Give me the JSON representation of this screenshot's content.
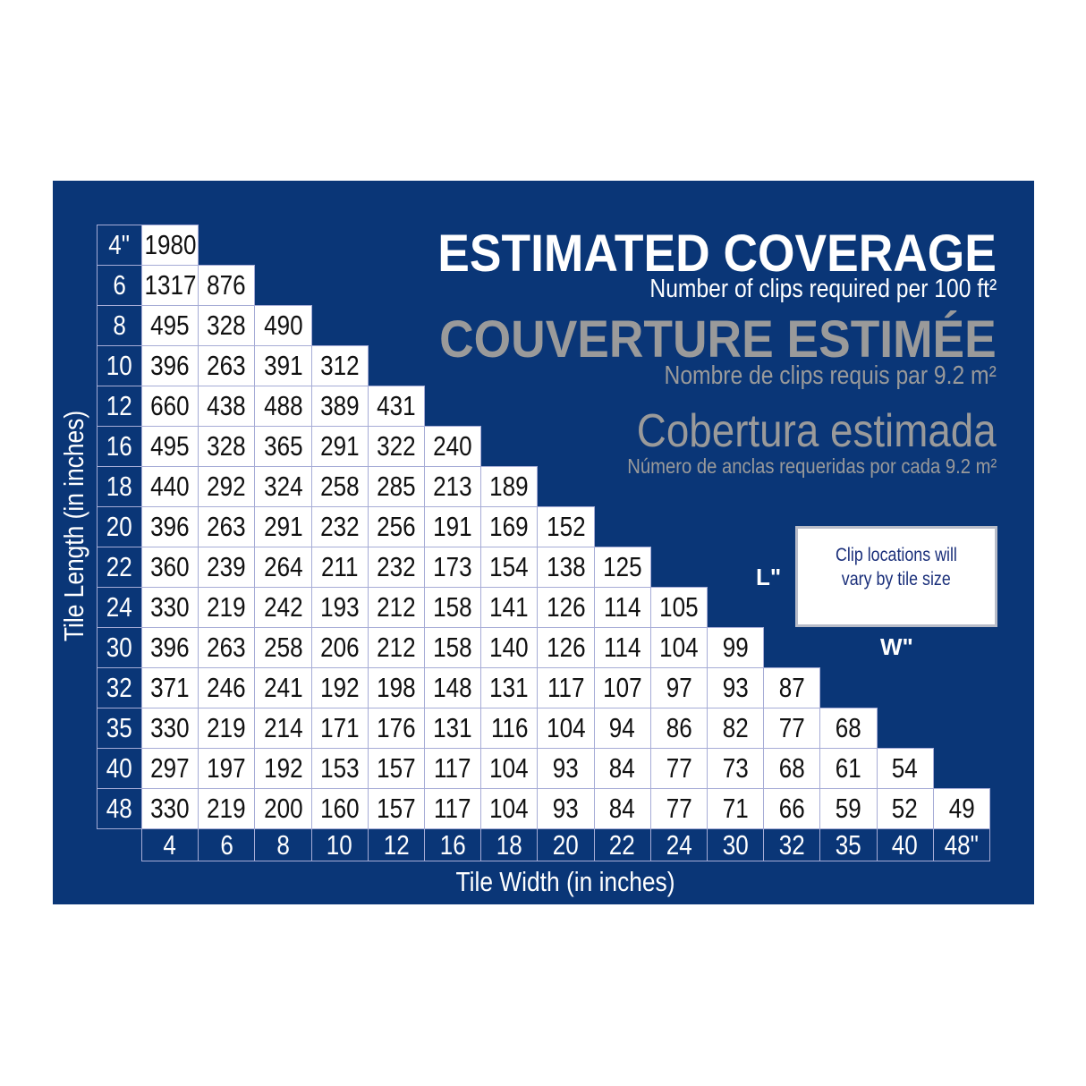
{
  "title_en": "ESTIMATED COVERAGE",
  "subtitle_en": "Number of clips required per 100 ft²",
  "title_fr": "COUVERTURE ESTIMÉE",
  "subtitle_fr": "Nombre de clips requis par 9.2 m²",
  "title_es": "Cobertura estimada",
  "subtitle_es": "Número  de anclas requeridas por cada 9.2 m²",
  "legend": {
    "text_line1": "Clip locations will",
    "text_line2": "vary by tile size",
    "length_label": "L\"",
    "width_label": "W\""
  },
  "ylabel": "Tile Length (in inches)",
  "xlabel": "Tile Width (in inches)",
  "colors": {
    "background": "#0a3677",
    "accent_gray": "#9a9a9a",
    "legend_text": "#1a2f7a"
  },
  "row_labels": [
    "4\"",
    "6",
    "8",
    "10",
    "12",
    "16",
    "18",
    "20",
    "22",
    "24",
    "30",
    "32",
    "35",
    "40",
    "48"
  ],
  "col_labels": [
    "4",
    "6",
    "8",
    "10",
    "12",
    "16",
    "18",
    "20",
    "22",
    "24",
    "30",
    "32",
    "35",
    "40",
    "48\""
  ],
  "table": [
    [
      "1980"
    ],
    [
      "1317",
      "876"
    ],
    [
      "495",
      "328",
      "490"
    ],
    [
      "396",
      "263",
      "391",
      "312"
    ],
    [
      "660",
      "438",
      "488",
      "389",
      "431"
    ],
    [
      "495",
      "328",
      "365",
      "291",
      "322",
      "240"
    ],
    [
      "440",
      "292",
      "324",
      "258",
      "285",
      "213",
      "189"
    ],
    [
      "396",
      "263",
      "291",
      "232",
      "256",
      "191",
      "169",
      "152"
    ],
    [
      "360",
      "239",
      "264",
      "211",
      "232",
      "173",
      "154",
      "138",
      "125"
    ],
    [
      "330",
      "219",
      "242",
      "193",
      "212",
      "158",
      "141",
      "126",
      "114",
      "105"
    ],
    [
      "396",
      "263",
      "258",
      "206",
      "212",
      "158",
      "140",
      "126",
      "114",
      "104",
      "99"
    ],
    [
      "371",
      "246",
      "241",
      "192",
      "198",
      "148",
      "131",
      "117",
      "107",
      "97",
      "93",
      "87"
    ],
    [
      "330",
      "219",
      "214",
      "171",
      "176",
      "131",
      "116",
      "104",
      "94",
      "86",
      "82",
      "77",
      "68"
    ],
    [
      "297",
      "197",
      "192",
      "153",
      "157",
      "117",
      "104",
      "93",
      "84",
      "77",
      "73",
      "68",
      "61",
      "54"
    ],
    [
      "330",
      "219",
      "200",
      "160",
      "157",
      "117",
      "104",
      "93",
      "84",
      "77",
      "71",
      "66",
      "59",
      "52",
      "49"
    ]
  ]
}
